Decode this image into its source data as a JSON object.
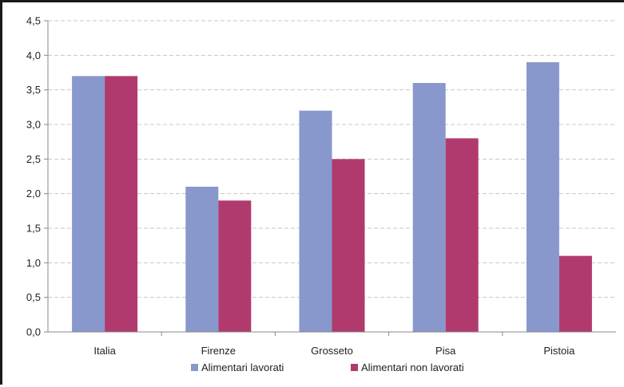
{
  "chart_data": {
    "type": "bar",
    "categories": [
      "Italia",
      "Firenze",
      "Grosseto",
      "Pisa",
      "Pistoia"
    ],
    "series": [
      {
        "name": "Alimentari lavorati",
        "values": [
          3.7,
          2.1,
          3.2,
          3.6,
          3.9
        ],
        "color": "#8898cc"
      },
      {
        "name": "Alimentari non lavorati",
        "values": [
          3.7,
          1.9,
          2.5,
          2.8,
          1.1
        ],
        "color": "#b03a6e"
      }
    ],
    "y_ticks": [
      "0,0",
      "0,5",
      "1,0",
      "1,5",
      "2,0",
      "2,5",
      "3,0",
      "3,5",
      "4,0",
      "4,5"
    ],
    "ylim": [
      0,
      4.5
    ],
    "grid": true,
    "legend_position": "bottom",
    "title": "",
    "xlabel": "",
    "ylabel": ""
  }
}
